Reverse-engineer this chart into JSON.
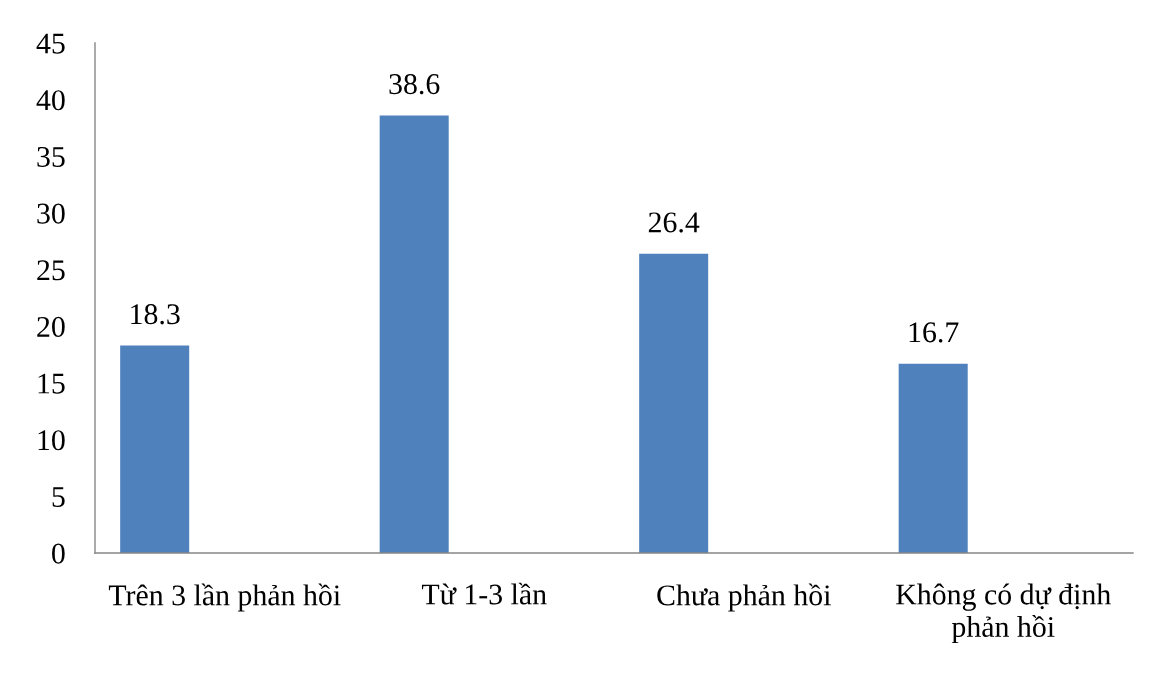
{
  "chart_data": {
    "type": "bar",
    "categories": [
      "Trên 3 lần phản hồi",
      "Từ 1-3 lần",
      "Chưa phản hồi",
      "Không có dự định\nphản hồi"
    ],
    "values": [
      18.3,
      38.6,
      26.4,
      16.7
    ],
    "color": "#4f81bd",
    "ylim": [
      0,
      45
    ],
    "yticks": [
      0,
      5,
      10,
      15,
      20,
      25,
      30,
      35,
      40,
      45
    ],
    "grid": false,
    "legend": false,
    "data_labels": true
  }
}
